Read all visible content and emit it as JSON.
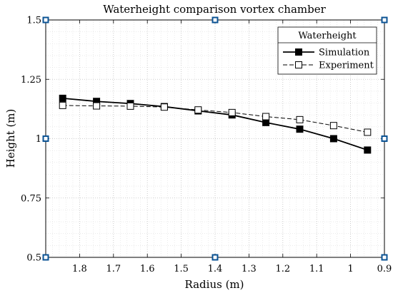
{
  "chart_data": {
    "type": "line",
    "title": "Waterheight comparison vortex chamber",
    "xlabel": "Radius (m)",
    "ylabel": "Height (m)",
    "xlim": [
      1.9,
      0.9
    ],
    "ylim": [
      0.5,
      1.5
    ],
    "x_reversed": true,
    "grid": "major and minor, dotted",
    "legend": {
      "title": "Waterheight",
      "placement": "top-right"
    },
    "x_ticks": [
      "1.8",
      "1.7",
      "1.6",
      "1.5",
      "1.4",
      "1.3",
      "1.2",
      "1.1",
      "1",
      "0.9"
    ],
    "y_ticks": [
      "0.5",
      "0.75",
      "1",
      "1.25",
      "1.5"
    ],
    "series": [
      {
        "name": "Simulation",
        "style": "solid",
        "marker": "filled-square",
        "color": "#000000",
        "x": [
          1.85,
          1.75,
          1.65,
          1.55,
          1.45,
          1.35,
          1.25,
          1.15,
          1.05,
          0.95
        ],
        "y": [
          1.17,
          1.157,
          1.148,
          1.135,
          1.117,
          1.1,
          1.068,
          1.04,
          1.0,
          0.952
        ]
      },
      {
        "name": "Experiment",
        "style": "dashed",
        "marker": "open-square",
        "color": "#000000",
        "x": [
          1.85,
          1.75,
          1.65,
          1.55,
          1.45,
          1.35,
          1.25,
          1.15,
          1.05,
          0.95
        ],
        "y": [
          1.14,
          1.138,
          1.137,
          1.133,
          1.121,
          1.11,
          1.093,
          1.08,
          1.055,
          1.027
        ]
      }
    ],
    "accent_color": "#0b5394"
  }
}
